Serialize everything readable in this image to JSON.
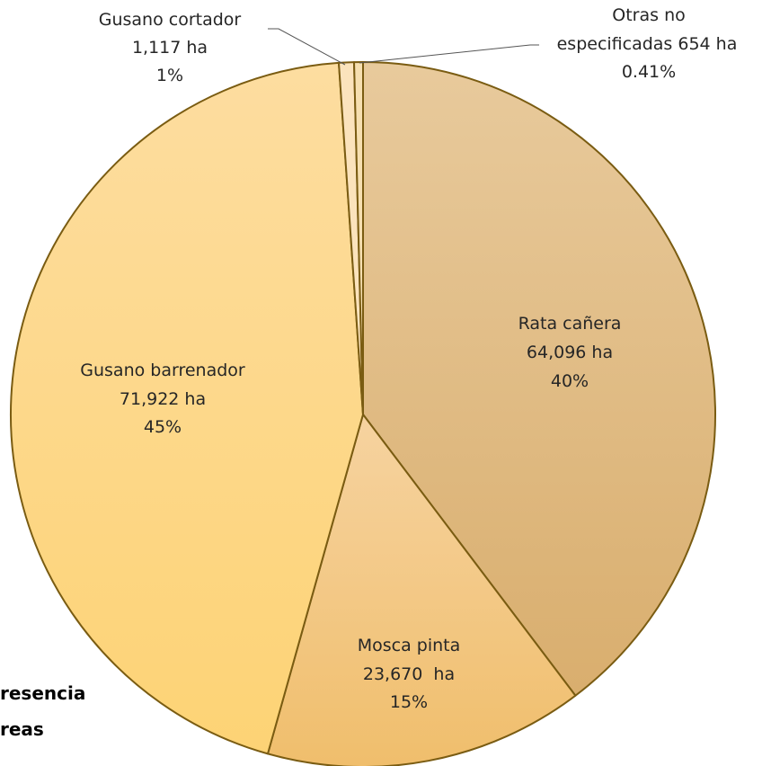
{
  "chart_data": {
    "type": "pie",
    "title": "",
    "slices": [
      {
        "label": "Rata cañera",
        "value_text": "64,096 ha",
        "pct_text": "40%",
        "value": 64096,
        "color": "#DDB884"
      },
      {
        "label": "Mosca pinta",
        "value_text": "23,670  ha",
        "pct_text": "15%",
        "value": 23670,
        "color": "#F3C985"
      },
      {
        "label": "Gusano barrenador",
        "value_text": "71,922 ha",
        "pct_text": "45%",
        "value": 71922,
        "color": "#FDD98C"
      },
      {
        "label": "Gusano cortador",
        "value_text": "1,117 ha",
        "pct_text": "1%",
        "value": 1117,
        "color": "#FBE3BC"
      },
      {
        "label": "Otras no especificadas",
        "value_text": "654 ha",
        "pct_text": "0.41%",
        "value": 654,
        "color": "#F6DFB0"
      }
    ],
    "colors": {
      "border": "#7A5C12",
      "leader": "#555555"
    },
    "partial_caption": {
      "line1": "resencia",
      "line2": "reas"
    }
  }
}
